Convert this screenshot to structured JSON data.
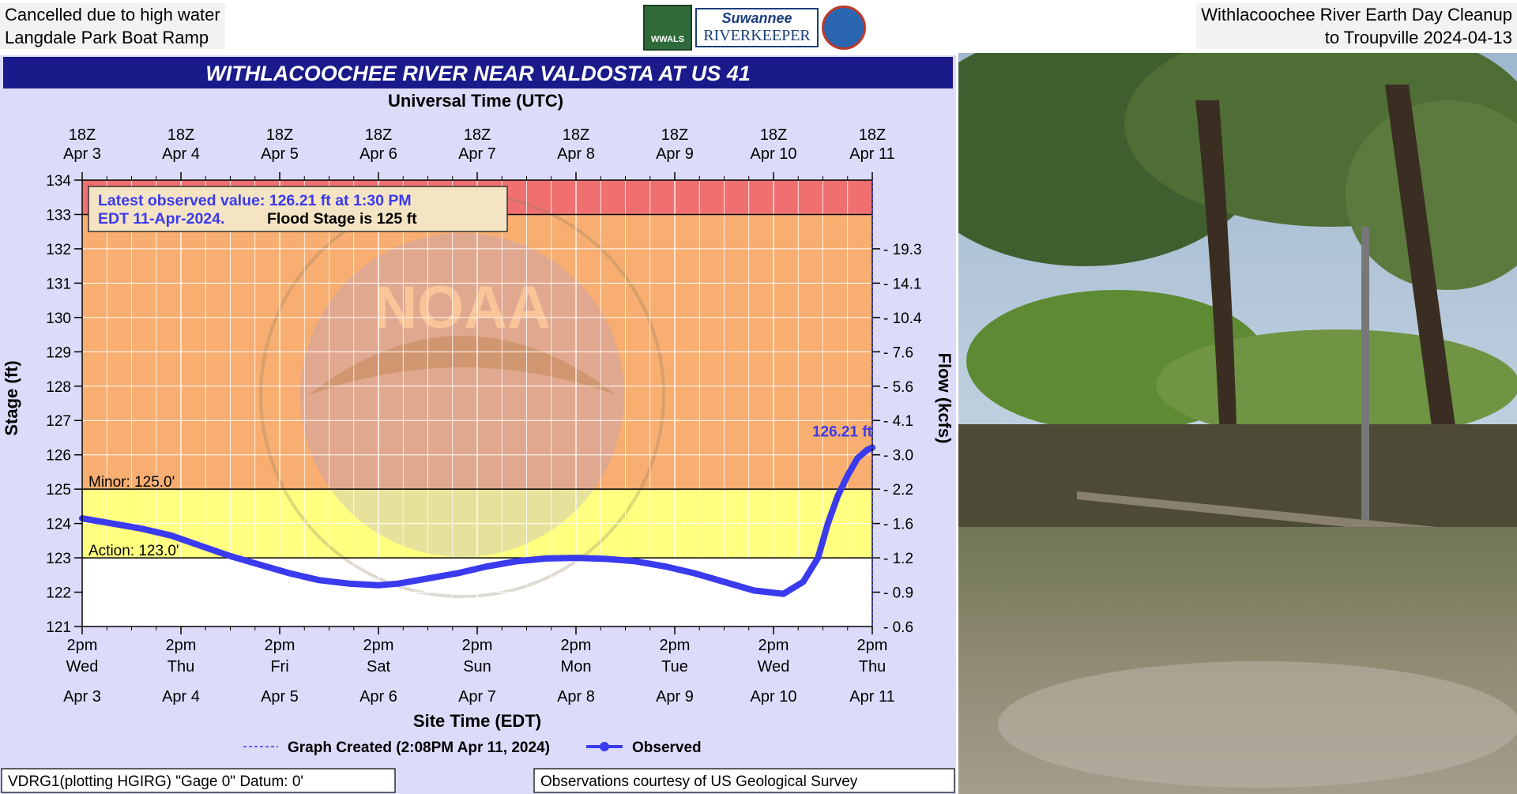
{
  "captions": {
    "left_line1": "Cancelled due to high water",
    "left_line2": "Langdale Park Boat Ramp",
    "right_line1": "Withlacoochee River Earth Day Cleanup",
    "right_line2": "to Troupville 2024-04-13"
  },
  "logos": {
    "wwals_text": "WWALS",
    "riverkeeper_line1": "Suwannee",
    "riverkeeper_line2": "RIVERKEEPER"
  },
  "colors": {
    "title_bar": "#1a1a8a",
    "observed": "#3a3aee",
    "major": "#f07070",
    "moderate": "#f7ae70",
    "minor": "#ffff80",
    "background": "#dcdcfa"
  },
  "chart_data": {
    "type": "line",
    "title": "WITHLACOOCHEE RIVER NEAR VALDOSTA AT US 41",
    "top_axis_title": "Universal Time (UTC)",
    "top_ticks": [
      {
        "hour": "18Z",
        "date": "Apr 3"
      },
      {
        "hour": "18Z",
        "date": "Apr 4"
      },
      {
        "hour": "18Z",
        "date": "Apr 5"
      },
      {
        "hour": "18Z",
        "date": "Apr 6"
      },
      {
        "hour": "18Z",
        "date": "Apr 7"
      },
      {
        "hour": "18Z",
        "date": "Apr 8"
      },
      {
        "hour": "18Z",
        "date": "Apr 9"
      },
      {
        "hour": "18Z",
        "date": "Apr 10"
      },
      {
        "hour": "18Z",
        "date": "Apr 11"
      }
    ],
    "bottom_ticks": [
      {
        "time": "2pm",
        "day": "Wed",
        "date": "Apr 3"
      },
      {
        "time": "2pm",
        "day": "Thu",
        "date": "Apr 4"
      },
      {
        "time": "2pm",
        "day": "Fri",
        "date": "Apr 5"
      },
      {
        "time": "2pm",
        "day": "Sat",
        "date": "Apr 6"
      },
      {
        "time": "2pm",
        "day": "Sun",
        "date": "Apr 7"
      },
      {
        "time": "2pm",
        "day": "Mon",
        "date": "Apr 8"
      },
      {
        "time": "2pm",
        "day": "Tue",
        "date": "Apr 9"
      },
      {
        "time": "2pm",
        "day": "Wed",
        "date": "Apr 10"
      },
      {
        "time": "2pm",
        "day": "Thu",
        "date": "Apr 11"
      }
    ],
    "xlabel": "Site Time (EDT)",
    "ylabel": "Stage (ft)",
    "y2label": "Flow (kcfs)",
    "ylim": [
      121,
      134
    ],
    "y_ticks": [
      "121",
      "122",
      "123",
      "124",
      "125",
      "126",
      "127",
      "128",
      "129",
      "130",
      "131",
      "132",
      "133",
      "134"
    ],
    "flow_ticks": [
      {
        "stage": 122,
        "label": "0.9"
      },
      {
        "stage": 123,
        "label": "1.2"
      },
      {
        "stage": 124,
        "label": "1.6"
      },
      {
        "stage": 125,
        "label": "2.2"
      },
      {
        "stage": 126,
        "label": "3.0"
      },
      {
        "stage": 127,
        "label": "4.1"
      },
      {
        "stage": 128,
        "label": "5.6"
      },
      {
        "stage": 129,
        "label": "7.6"
      },
      {
        "stage": 130,
        "label": "10.4"
      },
      {
        "stage": 131,
        "label": "14.1"
      },
      {
        "stage": 132,
        "label": "19.3"
      }
    ],
    "flow_bottom_label": "0.6",
    "zones": [
      {
        "name": "major",
        "from": 133,
        "to": 134,
        "color": "#f07070"
      },
      {
        "name": "moderate",
        "from": 125,
        "to": 133,
        "color": "#f7ae70"
      },
      {
        "name": "minor",
        "from": 123,
        "to": 125,
        "color": "#ffff80"
      }
    ],
    "thresholds": [
      {
        "label": "Minor: 125.0'",
        "value": 125
      },
      {
        "label": "Action: 123.0'",
        "value": 123
      }
    ],
    "series": [
      {
        "name": "Observed",
        "x": [
          0,
          0.3,
          0.6,
          0.9,
          1.2,
          1.5,
          1.8,
          2.1,
          2.4,
          2.7,
          3.0,
          3.2,
          3.5,
          3.8,
          4.1,
          4.4,
          4.7,
          5.0,
          5.3,
          5.6,
          5.9,
          6.2,
          6.5,
          6.8,
          7.1,
          7.3,
          7.45,
          7.55,
          7.65,
          7.75,
          7.85,
          7.95,
          8.0
        ],
        "values": [
          124.15,
          124.0,
          123.85,
          123.65,
          123.35,
          123.05,
          122.8,
          122.55,
          122.35,
          122.25,
          122.2,
          122.25,
          122.4,
          122.55,
          122.75,
          122.9,
          122.98,
          123.0,
          122.97,
          122.9,
          122.75,
          122.55,
          122.3,
          122.05,
          121.95,
          122.3,
          123.0,
          124.0,
          124.8,
          125.4,
          125.9,
          126.15,
          126.21
        ]
      }
    ],
    "callout_value": "126.21 ft",
    "info_box": {
      "line1": "Latest observed value: 126.21 ft at 1:30 PM",
      "line2_blue": "EDT 11-Apr-2024.",
      "line2_black": "Flood Stage is 125 ft"
    },
    "watermark": "NOAA",
    "legend": {
      "created": "Graph Created (2:08PM Apr 11, 2024)",
      "observed": "Observed"
    },
    "footer_left": "VDRG1(plotting HGIRG) \"Gage 0\" Datum: 0'",
    "footer_right": "Observations courtesy of US Geological Survey",
    "grid": true
  }
}
